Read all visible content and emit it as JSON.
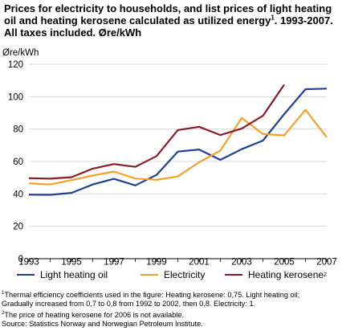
{
  "title": {
    "line1": "Prices for electricity to households, and list prices of light heating",
    "line2a": "oil and heating kerosene calculated as utilized energy",
    "line2_sup": "1",
    "line2b": ". 1993-2007.",
    "line3": "All taxes included. Øre/kWh"
  },
  "chart_data": {
    "type": "line",
    "title": "Prices for electricity to households, and list prices of light heating oil and heating kerosene calculated as utilized energy. 1993-2007. All taxes included. Øre/kWh",
    "ylabel": "Øre/kWh",
    "xlabel": "",
    "ylim": [
      0,
      120
    ],
    "yticks": [
      0,
      20,
      40,
      60,
      80,
      100,
      120
    ],
    "xlim": [
      1993,
      2007
    ],
    "xticks": [
      1993,
      1995,
      1997,
      1999,
      2001,
      2003,
      2005,
      2007
    ],
    "grid": true,
    "legend_position": "bottom",
    "x": [
      1993,
      1994,
      1995,
      1996,
      1997,
      1998,
      1999,
      2000,
      2001,
      2002,
      2003,
      2004,
      2005,
      2006,
      2007
    ],
    "series": [
      {
        "name": "Light heating oil",
        "sup": "",
        "color": "#1f3f8f",
        "values": [
          39.5,
          39.4,
          40.6,
          45.8,
          49.3,
          45.2,
          51.7,
          66.1,
          67.4,
          61.0,
          67.6,
          72.9,
          89.2,
          104.6,
          105.0
        ]
      },
      {
        "name": "Electricity",
        "sup": "",
        "color": "#f5a02b",
        "values": [
          46.5,
          45.8,
          48.5,
          51.3,
          53.8,
          49.5,
          48.7,
          50.8,
          59.5,
          66.7,
          86.9,
          76.9,
          76.1,
          91.9,
          75.0
        ]
      },
      {
        "name": "Heating kerosene",
        "sup": "2",
        "color": "#8b1a2a",
        "values": [
          49.7,
          49.4,
          50.3,
          55.6,
          58.4,
          56.7,
          63.3,
          79.4,
          81.4,
          76.3,
          80.3,
          88.2,
          107.4,
          null,
          null
        ]
      }
    ]
  },
  "notes": {
    "n1_sup": "1",
    "n1_line1": "Thermal efficiency coefficients used in the figure: Heating kerosene: 0,75. Light heating oil;",
    "n1_line2": "Gradually increased from 0,7 to 0,8 from 1992 to 2002, then 0,8. Electricity: 1.",
    "n2_sup": "2",
    "n2_text": "The price of heating kerosene for 2006 is not available.",
    "source": "Source: Statistics Norway and Norwegian Petroleum Institute."
  }
}
